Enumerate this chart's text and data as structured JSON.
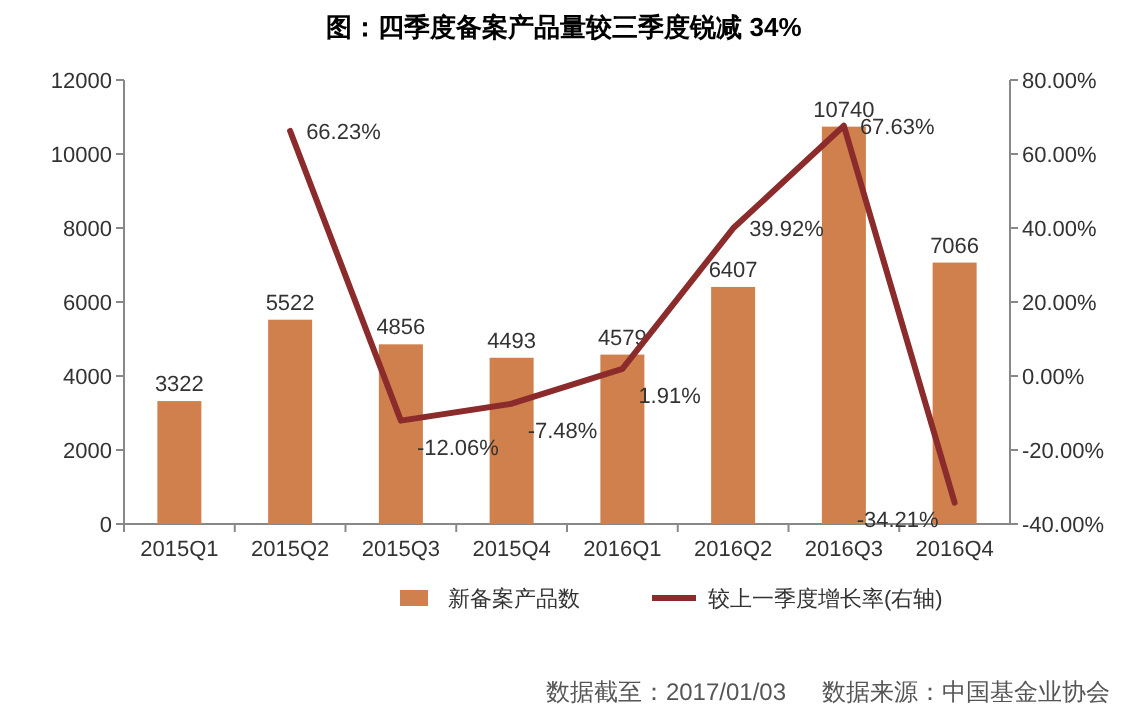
{
  "chart_data": {
    "type": "bar",
    "title": "图：四季度备案产品量较三季度锐减 34%",
    "categories": [
      "2015Q1",
      "2015Q2",
      "2015Q3",
      "2015Q4",
      "2016Q1",
      "2016Q2",
      "2016Q3",
      "2016Q4"
    ],
    "series": [
      {
        "name": "新备案产品数",
        "color": "#d0804c",
        "values": [
          3322,
          5522,
          4856,
          4493,
          4579,
          6407,
          10740,
          7066
        ],
        "value_labels": [
          "3322",
          "5522",
          "4856",
          "4493",
          "4579",
          "6407",
          "10740",
          "7066"
        ]
      },
      {
        "name": "较上一季度增长率(右轴)",
        "type": "line",
        "axis": "y2",
        "color": "#8b2b2b",
        "values": [
          null,
          66.23,
          -12.06,
          -7.48,
          1.91,
          39.92,
          67.63,
          -34.21
        ],
        "value_labels": [
          null,
          "66.23%",
          "-12.06%",
          "-7.48%",
          "1.91%",
          "39.92%",
          "67.63%",
          "-34.21%"
        ]
      }
    ],
    "ylim": [
      0,
      12000
    ],
    "yticks": [
      0,
      2000,
      4000,
      6000,
      8000,
      10000,
      12000
    ],
    "y2lim": [
      -40,
      80
    ],
    "y2ticks": [
      {
        "value": -40,
        "label": "-40.00%"
      },
      {
        "value": -20,
        "label": "-20.00%"
      },
      {
        "value": 0,
        "label": "0.00%"
      },
      {
        "value": 20,
        "label": "20.00%"
      },
      {
        "value": 40,
        "label": "40.00%"
      },
      {
        "value": 60,
        "label": "60.00%"
      },
      {
        "value": 80,
        "label": "80.00%"
      }
    ],
    "legend": "bottom",
    "annotations": [
      "数据截至：2017/01/03",
      "数据来源：中国基金业协会"
    ]
  }
}
